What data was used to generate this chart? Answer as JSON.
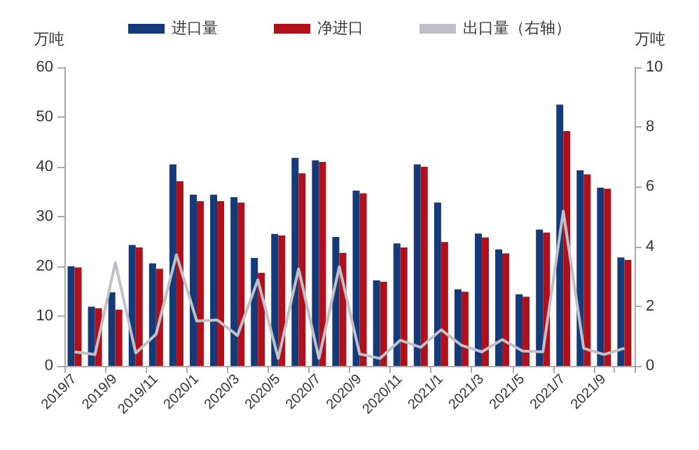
{
  "chart_data": {
    "type": "bar",
    "ylabel": "万吨",
    "y2label": "万吨",
    "categories": [
      "2019/7",
      null,
      "2019/9",
      null,
      "2019/11",
      null,
      "2020/1",
      null,
      "2020/3",
      null,
      "2020/5",
      null,
      "2020/7",
      null,
      "2020/9",
      null,
      "2020/11",
      null,
      "2021/1",
      null,
      "2021/3",
      null,
      "2021/5",
      null,
      "2021/7",
      null,
      "2021/9",
      null
    ],
    "series": [
      {
        "name": "进口量",
        "color": "#153a7a",
        "values": [
          20,
          11.9,
          14.8,
          24.3,
          20.6,
          40.5,
          34.4,
          34.4,
          33.9,
          21.7,
          26.5,
          41.8,
          41.3,
          25.9,
          35.2,
          17.2,
          24.6,
          40.5,
          32.8,
          15.4,
          26.6,
          23.4,
          14.4,
          27.4,
          52.5,
          39.3,
          35.8,
          21.8
        ]
      },
      {
        "name": "净进口",
        "color": "#b0101a",
        "values": [
          19.8,
          11.6,
          11.3,
          23.8,
          19.5,
          37.1,
          33.1,
          33.1,
          32.8,
          18.7,
          26.2,
          38.7,
          41.0,
          22.7,
          34.7,
          16.9,
          23.8,
          40.0,
          24.9,
          14.9,
          25.8,
          22.6,
          13.9,
          26.8,
          47.2,
          38.5,
          35.6,
          21.3
        ]
      },
      {
        "name": "出口量（右轴）",
        "type": "line",
        "axis": "y2",
        "color": "#c0c0c8",
        "values": [
          0.47,
          0.38,
          3.46,
          0.43,
          1.06,
          3.72,
          1.5,
          1.54,
          1.02,
          2.88,
          0.25,
          3.25,
          0.25,
          3.32,
          0.4,
          0.25,
          0.86,
          0.62,
          1.21,
          0.69,
          0.47,
          0.88,
          0.5,
          0.47,
          5.18,
          0.59,
          0.38,
          0.59
        ]
      }
    ],
    "ylim": [
      0,
      60
    ],
    "yticks": [
      0,
      10,
      20,
      30,
      40,
      50,
      60
    ],
    "y2lim": [
      0,
      10
    ],
    "y2ticks": [
      0,
      2,
      4,
      6,
      8,
      10
    ],
    "legend": "top",
    "grid": false,
    "marker": "none"
  }
}
